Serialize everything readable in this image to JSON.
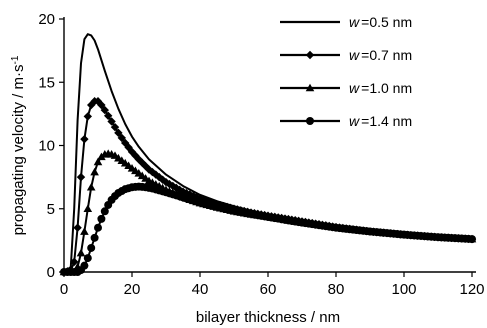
{
  "chart_data": {
    "type": "line",
    "xlabel": "bilayer thickness / nm",
    "ylabel_main": "propagating velocity / m",
    "ylabel_dot": "·",
    "ylabel_unit": "s",
    "ylabel_exp": "-1",
    "xlim": [
      0,
      120
    ],
    "ylim": [
      0,
      20
    ],
    "xticks": [
      0,
      20,
      40,
      60,
      80,
      100,
      120
    ],
    "yticks": [
      0,
      5,
      10,
      15,
      20
    ],
    "grid": false,
    "legend_position": "top-right",
    "series": [
      {
        "name_var": "w",
        "name_eq": "=",
        "name_val": "0.5 nm",
        "marker": "none",
        "x": [
          0,
          2,
          3,
          4,
          5,
          6,
          7,
          8,
          9,
          10,
          12,
          14,
          16,
          18,
          20,
          22,
          25,
          30,
          35,
          40,
          45,
          50,
          55,
          60,
          70,
          80,
          90,
          100,
          110,
          120
        ],
        "y": [
          0,
          0.4,
          5.0,
          12.0,
          16.5,
          18.4,
          18.8,
          18.7,
          18.3,
          17.6,
          15.9,
          14.3,
          12.9,
          11.7,
          10.7,
          9.9,
          8.9,
          7.7,
          6.8,
          6.1,
          5.6,
          5.2,
          4.85,
          4.55,
          4.05,
          3.6,
          3.25,
          2.95,
          2.75,
          2.6
        ]
      },
      {
        "name_var": "w",
        "name_eq": "=",
        "name_val": "0.7 nm",
        "marker": "diamond",
        "x": [
          0,
          2,
          3,
          4,
          5,
          6,
          7,
          8,
          9,
          10,
          11,
          12,
          14,
          16,
          18,
          20,
          22,
          25,
          30,
          35,
          40,
          45,
          50,
          55,
          60,
          70,
          80,
          90,
          100,
          110,
          120
        ],
        "y": [
          0,
          0.1,
          0.8,
          3.5,
          7.5,
          10.5,
          12.3,
          13.2,
          13.5,
          13.5,
          13.2,
          12.8,
          11.9,
          11.0,
          10.2,
          9.5,
          8.9,
          8.1,
          7.1,
          6.35,
          5.8,
          5.35,
          5.0,
          4.7,
          4.45,
          4.0,
          3.55,
          3.2,
          2.95,
          2.75,
          2.6
        ]
      },
      {
        "name_var": "w",
        "name_eq": "=",
        "name_val": "1.0 nm",
        "marker": "triangle",
        "x": [
          0,
          3,
          4,
          5,
          6,
          7,
          8,
          9,
          10,
          11,
          12,
          13,
          14,
          15,
          16,
          18,
          20,
          22,
          25,
          30,
          35,
          40,
          45,
          50,
          55,
          60,
          70,
          80,
          90,
          100,
          110,
          120
        ],
        "y": [
          0,
          0,
          0.4,
          1.5,
          3.2,
          5.0,
          6.7,
          7.9,
          8.7,
          9.1,
          9.3,
          9.35,
          9.3,
          9.2,
          9.0,
          8.6,
          8.2,
          7.8,
          7.2,
          6.5,
          5.9,
          5.45,
          5.1,
          4.8,
          4.55,
          4.35,
          3.9,
          3.5,
          3.2,
          2.95,
          2.75,
          2.6
        ]
      },
      {
        "name_var": "w",
        "name_eq": "=",
        "name_val": "1.4 nm",
        "marker": "circle",
        "x": [
          0,
          4,
          5,
          6,
          7,
          8,
          9,
          10,
          11,
          12,
          13,
          14,
          15,
          16,
          18,
          20,
          22,
          24,
          26,
          28,
          30,
          35,
          40,
          45,
          50,
          55,
          60,
          70,
          80,
          90,
          100,
          110,
          120
        ],
        "y": [
          0,
          0,
          0.15,
          0.5,
          1.1,
          1.9,
          2.7,
          3.5,
          4.2,
          4.8,
          5.3,
          5.7,
          6.0,
          6.25,
          6.55,
          6.7,
          6.75,
          6.7,
          6.6,
          6.45,
          6.3,
          5.9,
          5.5,
          5.15,
          4.85,
          4.6,
          4.35,
          3.9,
          3.5,
          3.2,
          2.95,
          2.75,
          2.6
        ]
      }
    ]
  }
}
